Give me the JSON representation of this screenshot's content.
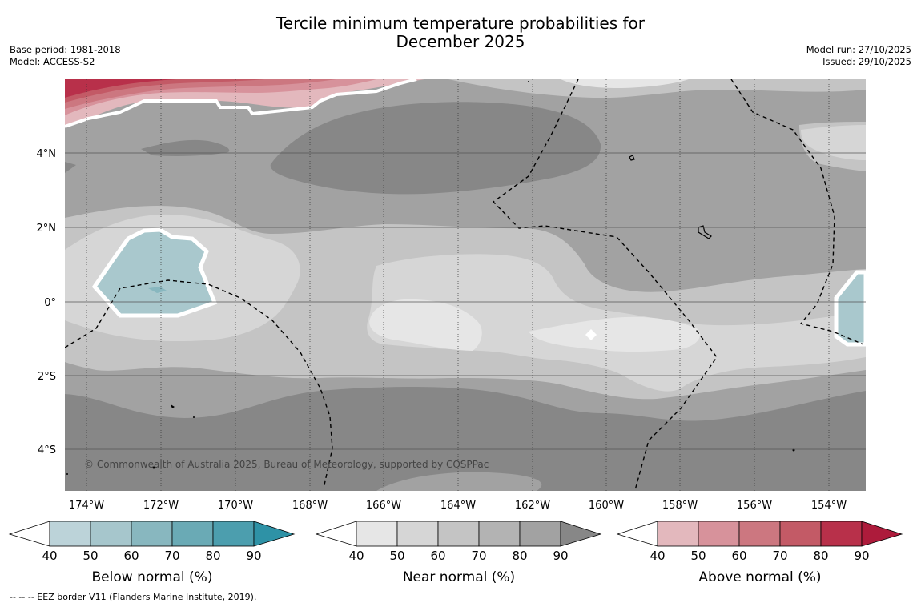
{
  "header": {
    "title_line1": "Tercile minimum temperature probabilities for",
    "title_line2": "December 2025",
    "base_period": "Base period: 1981-2018",
    "model": "Model: ACCESS-S2",
    "model_run": "Model run: 27/10/2025",
    "issued": "Issued: 29/10/2025"
  },
  "map": {
    "lat_labels": [
      "4°N",
      "2°N",
      "0°",
      "2°S",
      "4°S"
    ],
    "lon_labels": [
      "174°W",
      "172°W",
      "170°W",
      "168°W",
      "166°W",
      "164°W",
      "162°W",
      "160°W",
      "158°W",
      "156°W",
      "154°W"
    ],
    "copyright": "© Commonwealth of Australia 2025, Bureau of Meteorology, supported by COSPPac"
  },
  "colorbars": {
    "ticks": [
      "40",
      "50",
      "60",
      "70",
      "80",
      "90"
    ],
    "below": {
      "title": "Below normal (%)",
      "colors": [
        "#bcd3d9",
        "#a6c6cc",
        "#88b7bf",
        "#6aaab5",
        "#4c9eae",
        "#2e92a6"
      ]
    },
    "near": {
      "title": "Near normal (%)",
      "colors": [
        "#e6e6e6",
        "#d6d6d6",
        "#c4c4c4",
        "#b3b3b3",
        "#a2a2a2",
        "#878787"
      ]
    },
    "above": {
      "title": "Above normal (%)",
      "colors": [
        "#e3b8bd",
        "#d7929b",
        "#cc7780",
        "#c35a66",
        "#b8304a",
        "#ad1b3b"
      ]
    }
  },
  "footnote": "--  --  -- EEZ border V11 (Flanders Marine Institute, 2019)."
}
